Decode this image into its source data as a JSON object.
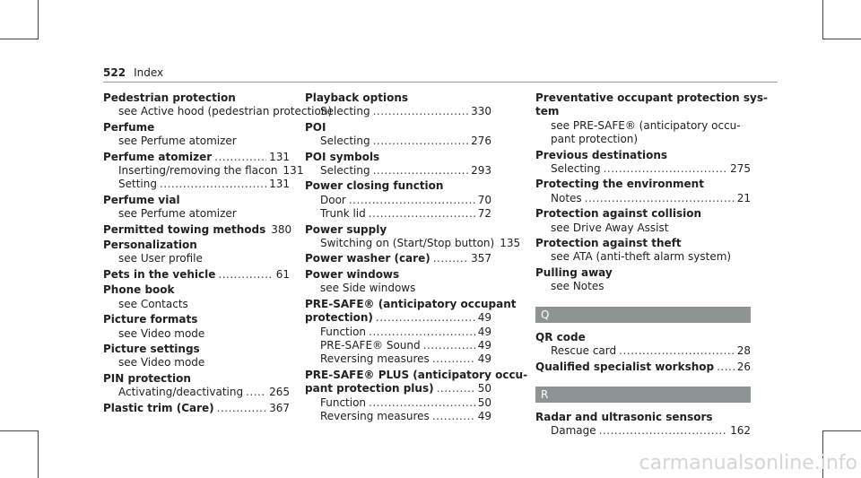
{
  "header": {
    "page_number": "522",
    "section": "Index"
  },
  "columns": [
    [
      {
        "term": "Pedestrian protection",
        "subs": [
          {
            "text": "see Active hood (pedestrian protection)"
          }
        ]
      },
      {
        "term": "Perfume",
        "subs": [
          {
            "text": "see Perfume atomizer"
          }
        ]
      },
      {
        "term": "Perfume atomizer",
        "page": "131",
        "subs": [
          {
            "text": "Inserting/removing the flacon",
            "page": "131"
          },
          {
            "text": "Setting",
            "page": "131"
          }
        ]
      },
      {
        "term": "Perfume vial",
        "subs": [
          {
            "text": "see Perfume atomizer"
          }
        ]
      },
      {
        "term": "Permitted towing methods",
        "page": "380",
        "subs": []
      },
      {
        "term": "Personalization",
        "subs": [
          {
            "text": "see User profile"
          }
        ]
      },
      {
        "term": "Pets in the vehicle",
        "page": "61",
        "subs": []
      },
      {
        "term": "Phone book",
        "subs": [
          {
            "text": "see Contacts"
          }
        ]
      },
      {
        "term": "Picture formats",
        "subs": [
          {
            "text": "see Video mode"
          }
        ]
      },
      {
        "term": "Picture settings",
        "subs": [
          {
            "text": "see Video mode"
          }
        ]
      },
      {
        "term": "PIN protection",
        "subs": [
          {
            "text": "Activating/deactivating",
            "page": "265"
          }
        ]
      },
      {
        "term": "Plastic trim (Care)",
        "page": "367",
        "subs": []
      }
    ],
    [
      {
        "term": "Playback options",
        "subs": [
          {
            "text": "Selecting",
            "page": "330"
          }
        ]
      },
      {
        "term": "POI",
        "subs": [
          {
            "text": "Selecting",
            "page": "276"
          }
        ]
      },
      {
        "term": "POI symbols",
        "subs": [
          {
            "text": "Selecting",
            "page": "293"
          }
        ]
      },
      {
        "term": "Power closing function",
        "subs": [
          {
            "text": "Door",
            "page": "70"
          },
          {
            "text": "Trunk lid",
            "page": "72"
          }
        ]
      },
      {
        "term": "Power supply",
        "subs": [
          {
            "text": "Switching on (Start/Stop button)",
            "page": "135"
          }
        ]
      },
      {
        "term": "Power washer (care)",
        "page": "357",
        "subs": []
      },
      {
        "term": "Power windows",
        "subs": [
          {
            "text": "see Side windows"
          }
        ]
      },
      {
        "term_lines": [
          "PRE-SAFE® (anticipatory occupant",
          "protection)"
        ],
        "page": "49",
        "subs": [
          {
            "text": "Function",
            "page": "49"
          },
          {
            "text": "PRE-SAFE® Sound",
            "page": "49"
          },
          {
            "text": "Reversing measures",
            "page": "49"
          }
        ]
      },
      {
        "term_lines": [
          "PRE-SAFE® PLUS (anticipatory occu-",
          "pant protection plus)"
        ],
        "page": "50",
        "subs": [
          {
            "text": "Function",
            "page": "50"
          },
          {
            "text": "Reversing measures",
            "page": "49"
          }
        ]
      }
    ],
    [
      {
        "term_lines": [
          "Preventative occupant protection sys-",
          "tem"
        ],
        "subs": [
          {
            "lines": [
              "see PRE-SAFE® (anticipatory occu-",
              "pant protection)"
            ]
          }
        ]
      },
      {
        "term": "Previous destinations",
        "subs": [
          {
            "text": "Selecting",
            "page": "275"
          }
        ]
      },
      {
        "term": "Protecting the environment",
        "subs": [
          {
            "text": "Notes",
            "page": "21"
          }
        ]
      },
      {
        "term": "Protection against collision",
        "subs": [
          {
            "text": "see Drive Away Assist"
          }
        ]
      },
      {
        "term": "Protection against theft",
        "subs": [
          {
            "text": "see ATA (anti-theft alarm system)"
          }
        ]
      },
      {
        "term": "Pulling away",
        "subs": [
          {
            "text": "see Notes"
          }
        ]
      }
    ]
  ],
  "letter_sections": [
    {
      "letter": "Q",
      "entries": [
        {
          "term": "QR code",
          "subs": [
            {
              "text": "Rescue card",
              "page": "28"
            }
          ]
        },
        {
          "term": "Qualified specialist workshop",
          "page": "26",
          "subs": []
        }
      ]
    },
    {
      "letter": "R",
      "entries": [
        {
          "term": "Radar and ultrasonic sensors",
          "subs": [
            {
              "text": "Damage",
              "page": "162"
            }
          ]
        }
      ]
    }
  ],
  "watermark": "carmanualsonline.info"
}
